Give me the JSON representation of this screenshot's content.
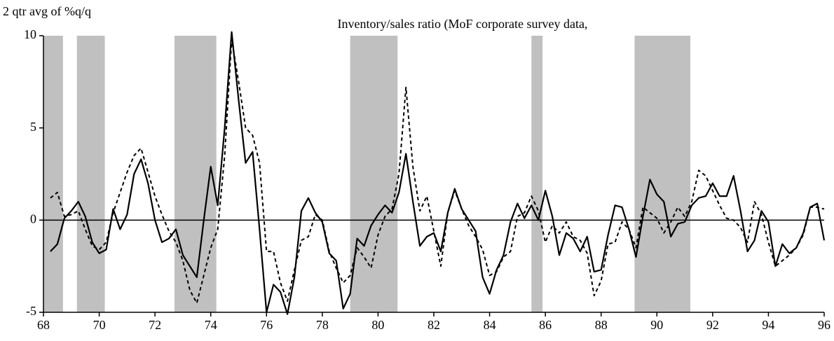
{
  "chart_data": {
    "type": "line",
    "title": "Inventory/sales ratio (MoF corporate survey data,",
    "y_label": "2 qtr avg of %q/q",
    "xlim": [
      68,
      96
    ],
    "xticks": [
      68,
      70,
      72,
      74,
      76,
      78,
      80,
      82,
      84,
      86,
      88,
      90,
      92,
      94,
      96
    ],
    "ylim": [
      -5,
      10
    ],
    "yticks": [
      -5,
      0,
      5,
      10
    ],
    "shade_color": "#c0c0c0",
    "shaded_regions": [
      [
        68.0,
        68.7
      ],
      [
        69.2,
        70.2
      ],
      [
        72.7,
        74.2
      ],
      [
        79.0,
        80.7
      ],
      [
        85.5,
        85.9
      ],
      [
        89.2,
        91.2
      ]
    ],
    "x": [
      68.25,
      68.5,
      68.75,
      69,
      69.25,
      69.5,
      69.75,
      70,
      70.25,
      70.5,
      70.75,
      71,
      71.25,
      71.5,
      71.75,
      72,
      72.25,
      72.5,
      72.75,
      73,
      73.25,
      73.5,
      73.75,
      74,
      74.25,
      74.5,
      74.75,
      75,
      75.25,
      75.5,
      75.75,
      76,
      76.25,
      76.5,
      76.75,
      77,
      77.25,
      77.5,
      77.75,
      78,
      78.25,
      78.5,
      78.75,
      79,
      79.25,
      79.5,
      79.75,
      80,
      80.25,
      80.5,
      80.75,
      81,
      81.25,
      81.5,
      81.75,
      82,
      82.25,
      82.5,
      82.75,
      83,
      83.25,
      83.5,
      83.75,
      84,
      84.25,
      84.5,
      84.75,
      85,
      85.25,
      85.5,
      85.75,
      86,
      86.25,
      86.5,
      86.75,
      87,
      87.25,
      87.5,
      87.75,
      88,
      88.25,
      88.5,
      88.75,
      89,
      89.25,
      89.5,
      89.75,
      90,
      90.25,
      90.5,
      90.75,
      91,
      91.25,
      91.5,
      91.75,
      92,
      92.25,
      92.5,
      92.75,
      93,
      93.25,
      93.5,
      93.75,
      94,
      94.25,
      94.5,
      94.75,
      95,
      95.25,
      95.5,
      95.75,
      96
    ],
    "series": [
      {
        "color": "#000000",
        "line_style": "solid",
        "values": [
          -1.7,
          -1.3,
          0.1,
          0.5,
          1.0,
          0.2,
          -1.2,
          -1.8,
          -1.6,
          0.6,
          -0.5,
          0.3,
          2.5,
          3.3,
          2.0,
          0.0,
          -1.2,
          -1.0,
          -0.5,
          -1.9,
          -2.5,
          -3.1,
          0.0,
          2.9,
          0.8,
          5.0,
          10.2,
          6.5,
          3.1,
          3.7,
          -0.5,
          -5.0,
          -3.5,
          -3.9,
          -5.1,
          -3.1,
          0.5,
          1.2,
          0.4,
          -0.1,
          -1.8,
          -2.2,
          -4.8,
          -4.0,
          -1.0,
          -1.4,
          -0.3,
          0.3,
          0.8,
          0.4,
          1.5,
          3.6,
          1.0,
          -1.4,
          -0.9,
          -0.7,
          -1.7,
          0.4,
          1.7,
          0.6,
          0.0,
          -0.6,
          -3.1,
          -4.0,
          -2.7,
          -1.9,
          -0.1,
          0.9,
          0.1,
          0.8,
          0.0,
          1.6,
          0.2,
          -1.9,
          -0.7,
          -1.0,
          -1.7,
          -0.9,
          -2.8,
          -2.7,
          -0.8,
          0.8,
          0.7,
          -0.5,
          -2.0,
          0.2,
          2.2,
          1.4,
          1.0,
          -0.9,
          -0.2,
          -0.1,
          0.8,
          1.2,
          1.3,
          2.0,
          1.3,
          1.3,
          2.4,
          0.5,
          -1.7,
          -1.1,
          0.5,
          -0.1,
          -2.5,
          -1.3,
          -1.8,
          -1.5,
          -0.7,
          0.7,
          0.9,
          -1.1
        ]
      },
      {
        "color": "#000000",
        "line_style": "dashed",
        "values": [
          1.2,
          1.5,
          0.2,
          0.3,
          0.5,
          -0.5,
          -1.4,
          -1.6,
          -1.2,
          0.4,
          1.5,
          2.6,
          3.5,
          3.9,
          2.6,
          1.3,
          0.3,
          -0.6,
          -1.2,
          -2.2,
          -3.8,
          -4.5,
          -3.0,
          -1.5,
          -0.5,
          3.5,
          9.8,
          7.5,
          5.0,
          4.6,
          3.1,
          -1.7,
          -1.7,
          -3.4,
          -4.4,
          -2.7,
          -1.1,
          -0.9,
          0.3,
          0.0,
          -1.7,
          -2.6,
          -3.4,
          -3.0,
          -1.5,
          -2.0,
          -2.6,
          -0.8,
          0.2,
          0.6,
          2.5,
          7.2,
          2.9,
          0.5,
          1.3,
          -0.6,
          -2.5,
          0.4,
          1.6,
          0.6,
          -0.3,
          -0.9,
          -1.6,
          -3.0,
          -2.8,
          -2.0,
          -1.7,
          0.2,
          0.4,
          1.3,
          0.5,
          -1.2,
          -0.3,
          -0.7,
          -0.1,
          -0.9,
          -1.1,
          -1.8,
          -4.1,
          -3.3,
          -1.3,
          -1.2,
          -0.1,
          -0.5,
          -1.5,
          0.7,
          0.4,
          0.1,
          -0.7,
          -0.1,
          0.7,
          0.2,
          1.0,
          2.7,
          2.4,
          1.6,
          0.8,
          0.1,
          0.0,
          -0.4,
          -1.2,
          1.0,
          0.3,
          -1.2,
          -2.5,
          -2.2,
          -1.9,
          -1.5,
          -0.8,
          0.7,
          0.7,
          0.6
        ]
      }
    ]
  }
}
